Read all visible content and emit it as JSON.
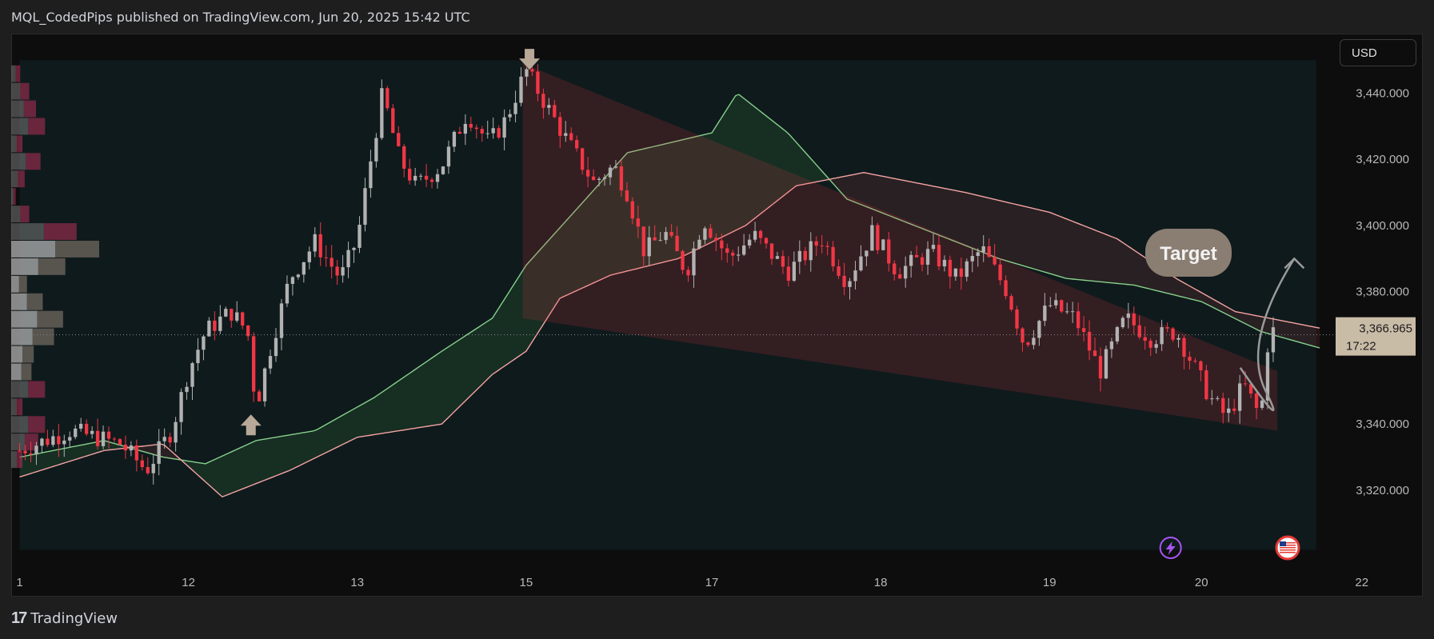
{
  "header": {
    "published": "MQL_CodedPips published on TradingView.com, Jun 20, 2025 15:42 UTC"
  },
  "currency_button": "USD",
  "footer": {
    "brand": "TradingView"
  },
  "annotations": {
    "target_label": "Target"
  },
  "price_label": {
    "value": "3,366.965",
    "countdown": "17:22"
  },
  "colors": {
    "bull": "#b2b2b2",
    "bear": "#f23645",
    "cloud_green": "#86d08c",
    "cloud_red": "#f4a3a3",
    "wedge_fill": "#f23645",
    "arrow": "#b8a898",
    "target_bg": "#8a7d72"
  },
  "chart_data": {
    "type": "candlestick",
    "symbol_currency": "USD",
    "y_ticks": [
      3440,
      3420,
      3400,
      3380,
      3360,
      3340,
      3320
    ],
    "y_tick_labels": [
      "3,440.000",
      "3,420.000",
      "3,400.000",
      "3,380.000",
      "3,360.000",
      "3,340.000",
      "3,320.000"
    ],
    "y_range": [
      3298,
      3458
    ],
    "x_range": [
      0.95,
      8.7
    ],
    "x_ticks": [
      {
        "label": "1",
        "x": 1.0
      },
      {
        "label": "12",
        "x": 2.0
      },
      {
        "label": "13",
        "x": 3.0
      },
      {
        "label": "15",
        "x": 4.0
      },
      {
        "label": "17",
        "x": 5.1
      },
      {
        "label": "18",
        "x": 6.1
      },
      {
        "label": "19",
        "x": 7.1
      },
      {
        "label": "20",
        "x": 8.0
      },
      {
        "label": "22",
        "x": 8.95
      }
    ],
    "last_price": 3366.965,
    "keypoints": [
      [
        1.0,
        3332
      ],
      [
        1.3,
        3338
      ],
      [
        1.6,
        3334
      ],
      [
        1.75,
        3326
      ],
      [
        1.9,
        3338
      ],
      [
        2.0,
        3356
      ],
      [
        2.1,
        3368
      ],
      [
        2.25,
        3374
      ],
      [
        2.35,
        3368
      ],
      [
        2.4,
        3345
      ],
      [
        2.48,
        3362
      ],
      [
        2.6,
        3384
      ],
      [
        2.75,
        3395
      ],
      [
        2.9,
        3384
      ],
      [
        3.0,
        3396
      ],
      [
        3.08,
        3420
      ],
      [
        3.15,
        3440
      ],
      [
        3.25,
        3420
      ],
      [
        3.35,
        3412
      ],
      [
        3.5,
        3418
      ],
      [
        3.65,
        3434
      ],
      [
        3.78,
        3425
      ],
      [
        3.88,
        3432
      ],
      [
        4.0,
        3447
      ],
      [
        4.1,
        3438
      ],
      [
        4.25,
        3425
      ],
      [
        4.4,
        3413
      ],
      [
        4.52,
        3418
      ],
      [
        4.6,
        3410
      ],
      [
        4.7,
        3392
      ],
      [
        4.82,
        3398
      ],
      [
        4.95,
        3386
      ],
      [
        5.05,
        3402
      ],
      [
        5.2,
        3390
      ],
      [
        5.35,
        3397
      ],
      [
        5.55,
        3386
      ],
      [
        5.75,
        3396
      ],
      [
        5.9,
        3383
      ],
      [
        6.05,
        3398
      ],
      [
        6.2,
        3386
      ],
      [
        6.4,
        3392
      ],
      [
        6.55,
        3384
      ],
      [
        6.7,
        3393
      ],
      [
        6.85,
        3380
      ],
      [
        6.95,
        3364
      ],
      [
        7.1,
        3376
      ],
      [
        7.25,
        3372
      ],
      [
        7.4,
        3356
      ],
      [
        7.55,
        3372
      ],
      [
        7.7,
        3366
      ],
      [
        7.85,
        3368
      ],
      [
        7.98,
        3355
      ],
      [
        8.05,
        3348
      ],
      [
        8.15,
        3342
      ],
      [
        8.25,
        3352
      ],
      [
        8.35,
        3342
      ],
      [
        8.4,
        3368
      ],
      [
        8.45,
        3368
      ]
    ],
    "cloud": {
      "green_line": [
        [
          1.0,
          3330
        ],
        [
          1.5,
          3335
        ],
        [
          1.85,
          3330
        ],
        [
          2.1,
          3328
        ],
        [
          2.4,
          3335
        ],
        [
          2.75,
          3338
        ],
        [
          3.1,
          3348
        ],
        [
          3.5,
          3362
        ],
        [
          3.8,
          3372
        ],
        [
          4.0,
          3388
        ],
        [
          4.3,
          3405
        ],
        [
          4.6,
          3422
        ],
        [
          5.1,
          3428
        ],
        [
          5.25,
          3440
        ],
        [
          5.55,
          3428
        ],
        [
          5.9,
          3408
        ],
        [
          6.3,
          3400
        ],
        [
          6.8,
          3390
        ],
        [
          7.2,
          3384
        ],
        [
          7.6,
          3382
        ],
        [
          8.0,
          3377
        ],
        [
          8.35,
          3368
        ],
        [
          8.7,
          3363
        ]
      ],
      "red_line": [
        [
          1.0,
          3324
        ],
        [
          1.5,
          3332
        ],
        [
          1.85,
          3334
        ],
        [
          2.2,
          3318
        ],
        [
          2.6,
          3326
        ],
        [
          3.0,
          3336
        ],
        [
          3.5,
          3340
        ],
        [
          3.8,
          3355
        ],
        [
          4.0,
          3362
        ],
        [
          4.2,
          3378
        ],
        [
          4.5,
          3385
        ],
        [
          4.9,
          3390
        ],
        [
          5.3,
          3400
        ],
        [
          5.6,
          3412
        ],
        [
          6.0,
          3416
        ],
        [
          6.6,
          3410
        ],
        [
          7.1,
          3404
        ],
        [
          7.5,
          3396
        ],
        [
          7.85,
          3384
        ],
        [
          8.2,
          3374
        ],
        [
          8.7,
          3369
        ]
      ]
    },
    "wedge": {
      "upper": [
        [
          3.98,
          3449
        ],
        [
          8.45,
          3356
        ]
      ],
      "lower": [
        [
          3.98,
          3372
        ],
        [
          8.45,
          3338
        ]
      ]
    },
    "markers": [
      {
        "type": "arrow-up",
        "x": 2.37,
        "y": 3340
      },
      {
        "type": "arrow-down",
        "x": 4.02,
        "y": 3450
      }
    ],
    "projection": {
      "points": [
        [
          8.23,
          3357
        ],
        [
          8.38,
          3350
        ],
        [
          8.55,
          3390
        ]
      ],
      "label": "Target"
    }
  }
}
